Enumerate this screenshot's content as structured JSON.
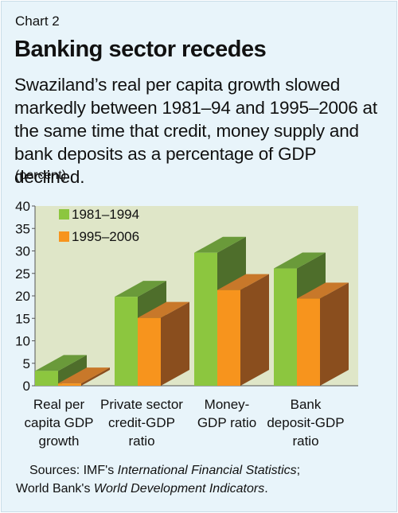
{
  "header": {
    "chart_label": "Chart 2",
    "title": "Banking sector recedes",
    "subtitle": "Swaziland’s real per capita growth slowed markedly between 1981–94 and 1995–2006 at the same time that credit, money supply and bank deposits as a percentage of GDP declined.",
    "unit": "(percent)"
  },
  "footer": {
    "sources_prefix": "Sources: IMF's ",
    "sources_ifs": "International Financial Statistics",
    "sources_sep": ";",
    "sources_wb_prefix": "World Bank's ",
    "sources_wdi": "World Development Indicators",
    "sources_end": "."
  },
  "colors": {
    "background": "#e8f4fa",
    "plot_area": "#dfe6c8",
    "series1_front": "#8cc63f",
    "series1_top": "#6a9a3a",
    "series1_side": "#4e6e2b",
    "series2_front": "#f7941d",
    "series2_top": "#c8782a",
    "series2_side": "#8a4e1e"
  },
  "chart_data": {
    "type": "bar",
    "categories": [
      [
        "Real per",
        "capita GDP",
        "growth"
      ],
      [
        "Private sector",
        "credit-GDP",
        "ratio"
      ],
      [
        "Money-",
        "GDP ratio"
      ],
      [
        "Bank",
        "deposit-GDP",
        "ratio"
      ]
    ],
    "series": [
      {
        "name": "1981–1994",
        "values": [
          3.3,
          19.8,
          29.6,
          26.1
        ]
      },
      {
        "name": "1995–2006",
        "values": [
          0.5,
          15.1,
          21.3,
          19.4
        ]
      }
    ],
    "ylim": [
      0,
      40
    ],
    "yticks": [
      0,
      5,
      10,
      15,
      20,
      25,
      30,
      35,
      40
    ],
    "legend_position": "top-left",
    "grid": false
  }
}
